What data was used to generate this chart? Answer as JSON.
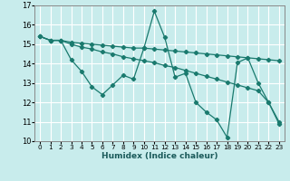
{
  "xlabel": "Humidex (Indice chaleur)",
  "xlim": [
    -0.5,
    23.5
  ],
  "ylim": [
    10,
    17
  ],
  "yticks": [
    10,
    11,
    12,
    13,
    14,
    15,
    16,
    17
  ],
  "xticks": [
    0,
    1,
    2,
    3,
    4,
    5,
    6,
    7,
    8,
    9,
    10,
    11,
    12,
    13,
    14,
    15,
    16,
    17,
    18,
    19,
    20,
    21,
    22,
    23
  ],
  "bg_color": "#c8ecec",
  "grid_color": "#ffffff",
  "line_color": "#1a7a6e",
  "line1_y": [
    15.4,
    15.2,
    15.2,
    15.1,
    15.05,
    15.0,
    14.95,
    14.9,
    14.85,
    14.8,
    14.8,
    14.75,
    14.7,
    14.65,
    14.6,
    14.55,
    14.5,
    14.45,
    14.4,
    14.35,
    14.3,
    14.25,
    14.2,
    14.15
  ],
  "line2_y": [
    15.4,
    15.2,
    15.2,
    14.2,
    13.6,
    12.8,
    12.4,
    12.9,
    13.4,
    13.2,
    14.8,
    16.7,
    15.35,
    13.3,
    13.5,
    12.0,
    11.5,
    11.1,
    10.2,
    14.05,
    14.3,
    13.0,
    12.0,
    10.9
  ],
  "line3_y": [
    15.4,
    15.2,
    15.2,
    15.0,
    14.85,
    14.75,
    14.6,
    14.5,
    14.35,
    14.25,
    14.15,
    14.05,
    13.9,
    13.8,
    13.65,
    13.5,
    13.35,
    13.2,
    13.05,
    12.9,
    12.75,
    12.6,
    12.0,
    11.0
  ]
}
